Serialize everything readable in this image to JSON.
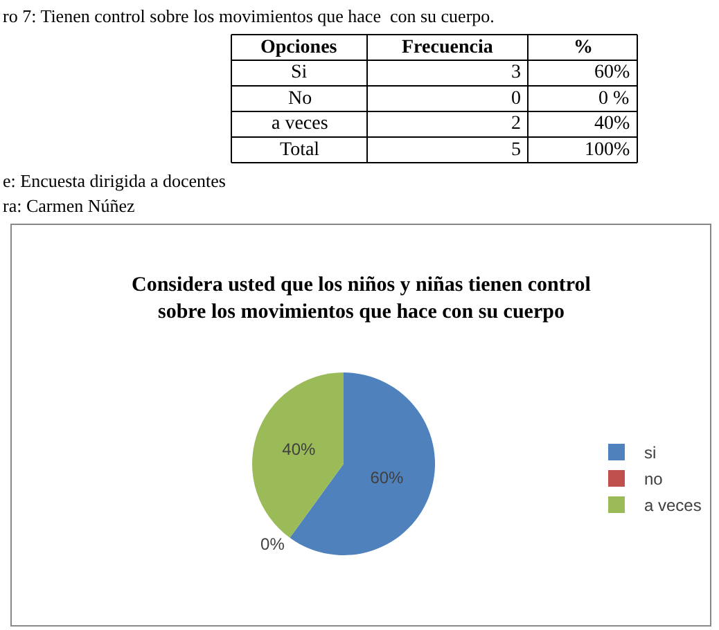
{
  "chart_data": {
    "type": "pie",
    "title": "Considera usted que los niños y niñas tienen control\nsobre los movimientos que hace con su cuerpo",
    "categories": [
      "si",
      "no",
      "a veces"
    ],
    "values": [
      60,
      0,
      40
    ],
    "colors": [
      "#4f81bd",
      "#c0504d",
      "#9bbb59"
    ],
    "value_labels": [
      "60%",
      "0%",
      "40%"
    ],
    "legend": "right",
    "annotations": [
      "ro 7: Tienen control sobre los movimientos que hace  con su cuerpo.",
      "Opciones",
      "Frecuencia",
      "%",
      "Si",
      "3",
      "60%",
      "No",
      "0",
      "0 %",
      "a veces",
      "2",
      "40%",
      "Total",
      "5",
      "100%",
      "e: Encuesta dirigida a docentes",
      "ra: Carmen Núñez"
    ]
  }
}
